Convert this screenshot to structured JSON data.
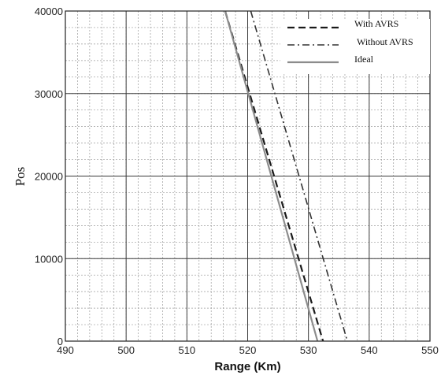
{
  "chart_data": {
    "type": "line",
    "xlabel": "Range (Km)",
    "ylabel": "Pos",
    "xlim": [
      490,
      550
    ],
    "ylim": [
      0,
      40000
    ],
    "x_ticks": [
      "490",
      "500",
      "510",
      "520",
      "530",
      "540",
      "550"
    ],
    "y_ticks": [
      "0",
      "10000",
      "20000",
      "30000",
      "40000"
    ],
    "grid": true,
    "legend_position": "top-right",
    "series": [
      {
        "name": "With AVRS",
        "style": "dashed",
        "color": "#1a1a1a",
        "x": [
          516.3,
          532.4
        ],
        "y": [
          40000,
          0
        ]
      },
      {
        "name": "Without AVRS",
        "style": "dash-dot",
        "color": "#333333",
        "x": [
          520.5,
          536.4
        ],
        "y": [
          40000,
          0
        ]
      },
      {
        "name": "Ideal",
        "style": "solid",
        "color": "#8c8c8c",
        "x": [
          516.3,
          531.5
        ],
        "y": [
          40000,
          0
        ]
      }
    ]
  }
}
